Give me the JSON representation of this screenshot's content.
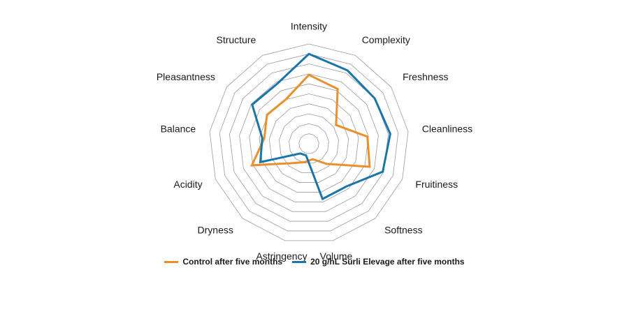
{
  "chart_data": {
    "type": "radar",
    "title": "",
    "axes": [
      "Intensity",
      "Complexity",
      "Freshness",
      "Cleanliness",
      "Fruitiness",
      "Softness",
      "Volume",
      "Astringency",
      "Dryness",
      "Acidity",
      "Balance",
      "Pleasantness",
      "Structure"
    ],
    "rmax": 10,
    "rings": 10,
    "grid": true,
    "legend_position": "bottom",
    "series": [
      {
        "name": "Control after five months",
        "color": "#e8902e",
        "values": [
          6.9,
          6.2,
          3.3,
          5.9,
          6.5,
          2.7,
          1.6,
          1.9,
          2.6,
          6.1,
          4.5,
          5.1,
          5.0
        ]
      },
      {
        "name": "20 g/hL Surli Elevage after five months",
        "color": "#1b75a8",
        "values": [
          9.0,
          8.3,
          8.0,
          8.2,
          7.9,
          5.7,
          5.7,
          1.2,
          1.3,
          5.2,
          4.7,
          6.9,
          6.8
        ]
      }
    ]
  }
}
